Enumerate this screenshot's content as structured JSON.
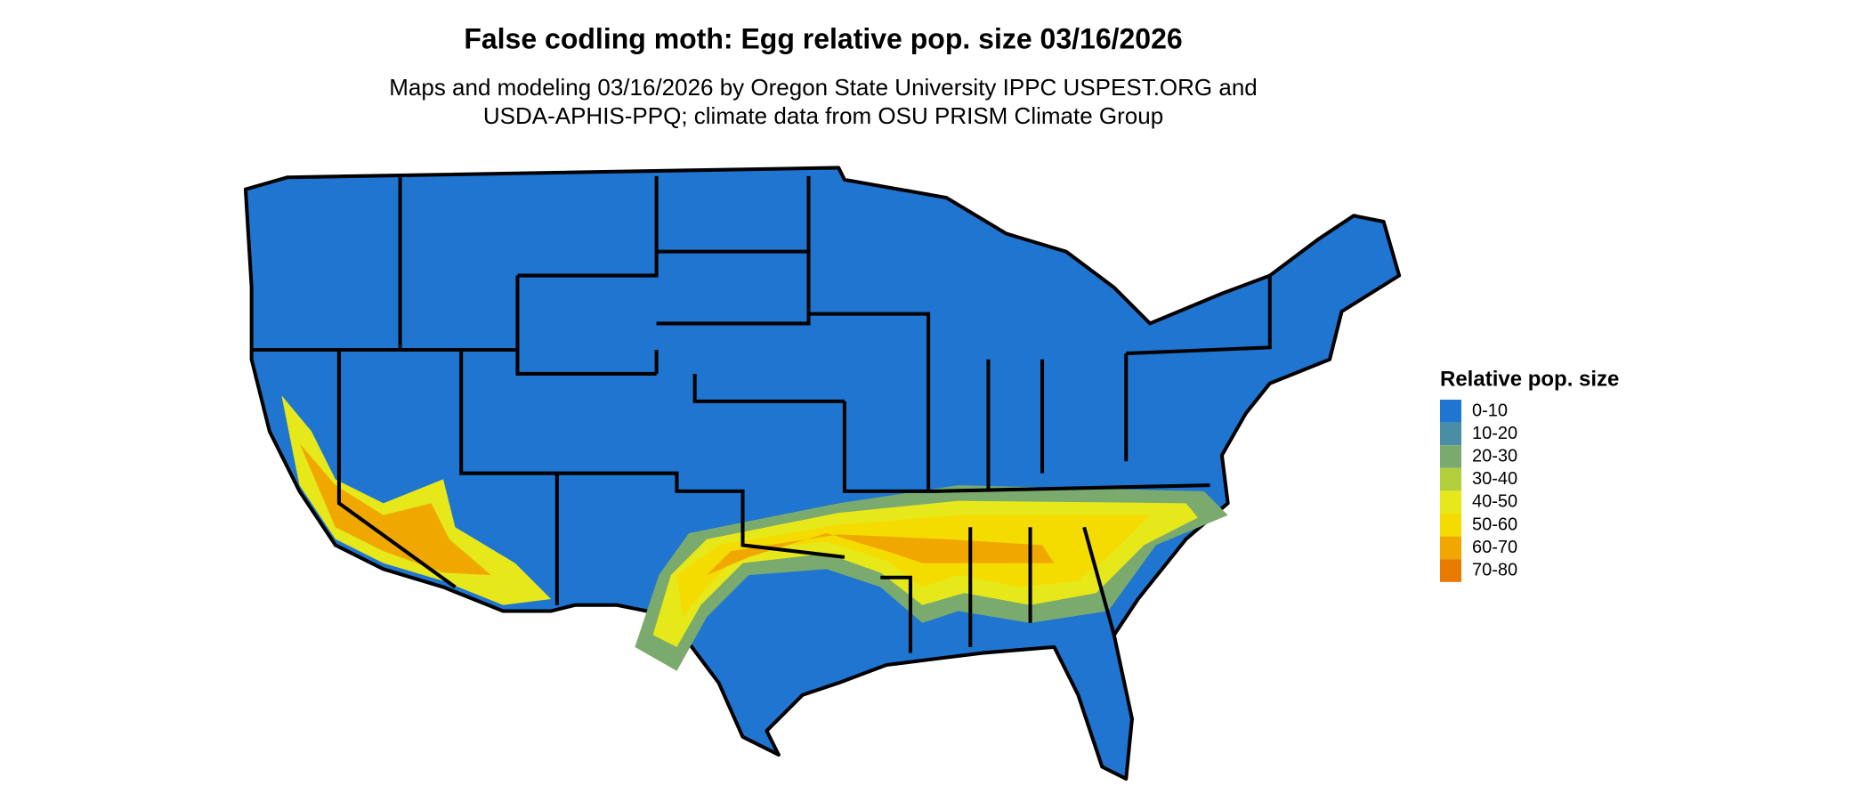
{
  "title": "False codling moth: Egg relative pop. size 03/16/2026",
  "subtitle": [
    "Maps and modeling 03/16/2026 by Oregon State University IPPC USPEST.ORG and",
    "USDA-APHIS-PPQ; climate data from OSU PRISM Climate Group"
  ],
  "legend": {
    "title": "Relative pop. size",
    "items": [
      {
        "label": "0-10",
        "color": "#1f75d0"
      },
      {
        "label": "10-20",
        "color": "#4a8ea5"
      },
      {
        "label": "20-30",
        "color": "#7aaa6e"
      },
      {
        "label": "30-40",
        "color": "#b3cf3c"
      },
      {
        "label": "40-50",
        "color": "#e6e81a"
      },
      {
        "label": "50-60",
        "color": "#f5dc00"
      },
      {
        "label": "60-70",
        "color": "#f0a800"
      },
      {
        "label": "70-80",
        "color": "#e87a00"
      }
    ]
  }
}
